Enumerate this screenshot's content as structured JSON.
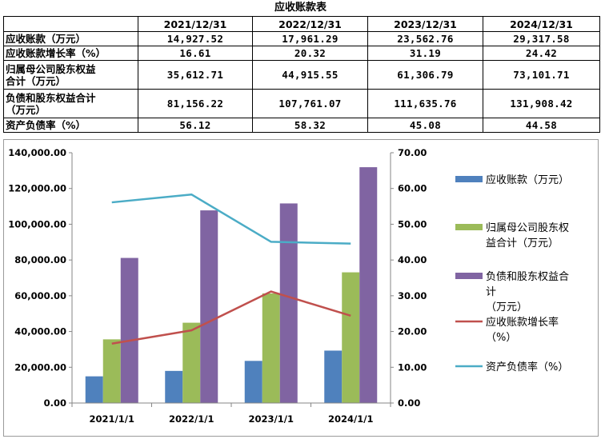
{
  "table": {
    "title": "应收账款表",
    "headers": [
      "",
      "2021/12/31",
      "2022/12/31",
      "2023/12/31",
      "2024/12/31"
    ],
    "rows": [
      {
        "label_lines": [
          "应收账款（万元）"
        ],
        "values": [
          "14,927.52",
          "17,961.29",
          "23,562.76",
          "29,317.58"
        ]
      },
      {
        "label_lines": [
          "应收账款增长率（%）"
        ],
        "values": [
          "16.61",
          "20.32",
          "31.19",
          "24.42"
        ]
      },
      {
        "label_lines": [
          "归属母公司股东权益",
          "合计（万元）"
        ],
        "values": [
          "35,612.71",
          "44,915.55",
          "61,306.79",
          "73,101.71"
        ]
      },
      {
        "label_lines": [
          "负债和股东权益合计",
          "（万元）"
        ],
        "values": [
          "81,156.22",
          "107,761.07",
          "111,635.76",
          "131,908.42"
        ]
      },
      {
        "label_lines": [
          "资产负债率（%）"
        ],
        "values": [
          "56.12",
          "58.32",
          "45.08",
          "44.58"
        ]
      }
    ]
  },
  "chart_data": {
    "type": "bar",
    "categories": [
      "2021/1/1",
      "2022/1/1",
      "2023/1/1",
      "2024/1/1"
    ],
    "y_left": {
      "range": [
        0,
        140000
      ],
      "ticks": [
        "0.00",
        "20,000.00",
        "40,000.00",
        "60,000.00",
        "80,000.00",
        "100,000.00",
        "120,000.00",
        "140,000.00"
      ],
      "tick_values": [
        0,
        20000,
        40000,
        60000,
        80000,
        100000,
        120000,
        140000
      ]
    },
    "y_right": {
      "range": [
        0,
        70
      ],
      "ticks": [
        "0.00",
        "10.00",
        "20.00",
        "30.00",
        "40.00",
        "50.00",
        "60.00",
        "70.00"
      ],
      "tick_values": [
        0,
        10,
        20,
        30,
        40,
        50,
        60,
        70
      ]
    },
    "series": [
      {
        "name_lines": [
          "应收账款（万元）"
        ],
        "kind": "bar",
        "axis": "left",
        "color": "#4f81bd",
        "values": [
          14927.52,
          17961.29,
          23562.76,
          29317.58
        ]
      },
      {
        "name_lines": [
          "归属母公司股东权",
          "益合计（万元）"
        ],
        "kind": "bar",
        "axis": "left",
        "color": "#9bbb59",
        "values": [
          35612.71,
          44915.55,
          61306.79,
          73101.71
        ]
      },
      {
        "name_lines": [
          "负债和股东权益合",
          "计",
          "（万元）"
        ],
        "kind": "bar",
        "axis": "left",
        "color": "#8064a2",
        "values": [
          81156.22,
          107761.07,
          111635.76,
          131908.42
        ]
      },
      {
        "name_lines": [
          "应收账款增长率",
          "（%）"
        ],
        "kind": "line",
        "axis": "right",
        "color": "#c0504d",
        "values": [
          16.61,
          20.32,
          31.19,
          24.42
        ]
      },
      {
        "name_lines": [
          "资产负债率（%）"
        ],
        "kind": "line",
        "axis": "right",
        "color": "#4bacc6",
        "values": [
          56.12,
          58.32,
          45.08,
          44.58
        ]
      }
    ],
    "grid": false,
    "legend": "right"
  }
}
